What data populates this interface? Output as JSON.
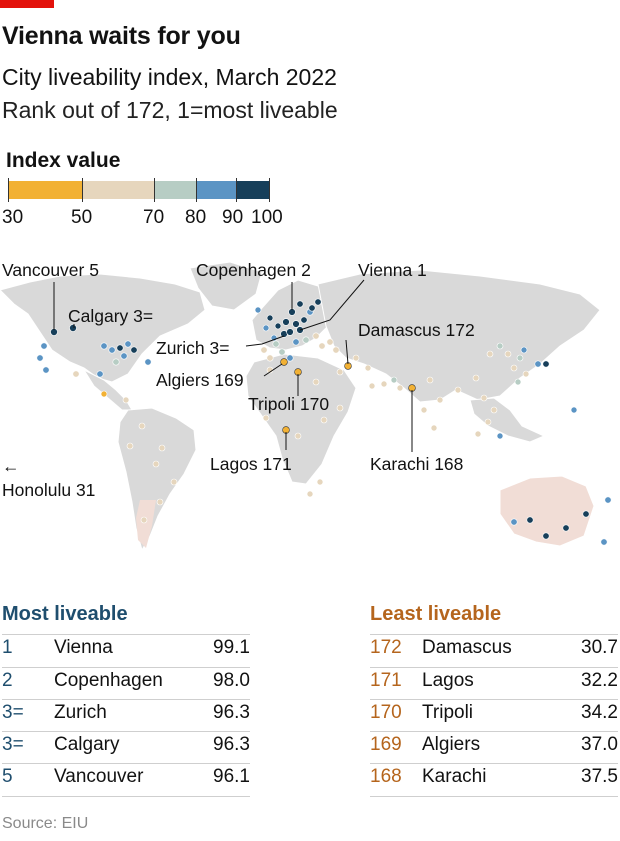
{
  "header": {
    "title": "Vienna waits for you",
    "subtitle": "City liveability index, March 2022",
    "subtitle2": "Rank out of 172, 1=most liveable"
  },
  "legend": {
    "title": "Index value",
    "ticks": [
      "30",
      "50",
      "70",
      "80",
      "90",
      "100"
    ],
    "bins": [
      {
        "from": 30,
        "to": 50,
        "color": "#f2b134"
      },
      {
        "from": 50,
        "to": 70,
        "color": "#e6d6bd"
      },
      {
        "from": 70,
        "to": 80,
        "color": "#b7cdc4"
      },
      {
        "from": 80,
        "to": 90,
        "color": "#5b94c4"
      },
      {
        "from": 90,
        "to": 100,
        "color": "#173f5a"
      }
    ]
  },
  "map": {
    "labels": {
      "vancouver": "Vancouver 5",
      "calgary": "Calgary 3=",
      "copenhagen": "Copenhagen 2",
      "vienna": "Vienna 1",
      "zurich": "Zurich 3=",
      "damascus": "Damascus 172",
      "algiers": "Algiers 169",
      "tripoli": "Tripoli 170",
      "lagos": "Lagos 171",
      "karachi": "Karachi 168",
      "honolulu": "Honolulu 31"
    },
    "honolulu_arrow": "←"
  },
  "most_liveable": {
    "title": "Most liveable",
    "rows": [
      {
        "rank": "1",
        "city": "Vienna",
        "value": "99.1"
      },
      {
        "rank": "2",
        "city": "Copenhagen",
        "value": "98.0"
      },
      {
        "rank": "3=",
        "city": "Zurich",
        "value": "96.3"
      },
      {
        "rank": "3=",
        "city": "Calgary",
        "value": "96.3"
      },
      {
        "rank": "5",
        "city": "Vancouver",
        "value": "96.1"
      }
    ]
  },
  "least_liveable": {
    "title": "Least liveable",
    "rows": [
      {
        "rank": "172",
        "city": "Damascus",
        "value": "30.7"
      },
      {
        "rank": "171",
        "city": "Lagos",
        "value": "32.2"
      },
      {
        "rank": "170",
        "city": "Tripoli",
        "value": "34.2"
      },
      {
        "rank": "169",
        "city": "Algiers",
        "value": "37.0"
      },
      {
        "rank": "168",
        "city": "Karachi",
        "value": "37.5"
      }
    ]
  },
  "colors": {
    "most": "#1f4e6e",
    "least": "#b5651d",
    "land": "#d9d9d9",
    "australia_land": "#f1ddd6"
  },
  "source": "Source: EIU"
}
